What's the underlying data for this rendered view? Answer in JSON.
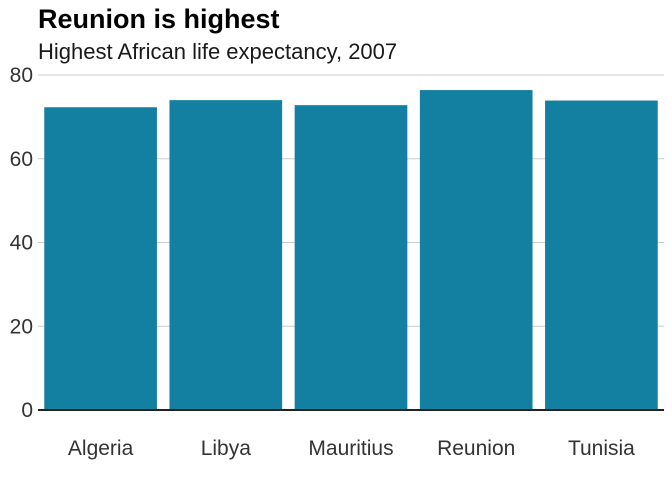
{
  "chart_data": {
    "type": "bar",
    "title": "Reunion is highest",
    "subtitle": "Highest African life expectancy, 2007",
    "categories": [
      "Algeria",
      "Libya",
      "Mauritius",
      "Reunion",
      "Tunisia"
    ],
    "values": [
      72.3,
      74.0,
      72.8,
      76.4,
      73.9
    ],
    "ylim": [
      0,
      80
    ],
    "yticks": [
      0,
      20,
      40,
      60,
      80
    ],
    "bar_color": "#1380a1",
    "grid_color": "#cbcbcb",
    "axis_color": "#222222",
    "grid": true
  }
}
